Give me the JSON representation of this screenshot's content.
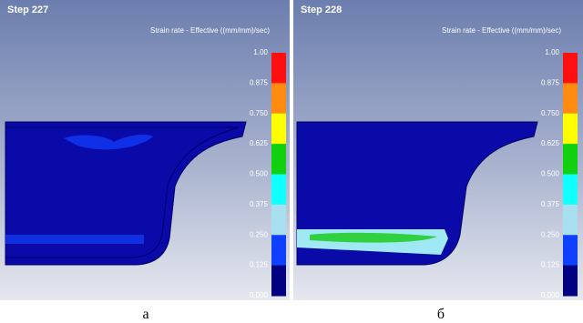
{
  "panels": [
    {
      "step": "Step 227",
      "legend_title": "Strain rate - Effective ((mm/mm)/sec)",
      "caption": "а"
    },
    {
      "step": "Step 228",
      "legend_title": "Strain rate - Effective ((mm/mm)/sec)",
      "caption": "б"
    }
  ],
  "colorbar": {
    "labels": [
      "1.00",
      "0.875",
      "0.750",
      "0.625",
      "0.500",
      "0.375",
      "0.250",
      "0.125",
      "0.000"
    ],
    "colors": [
      "#ff1010",
      "#ff8c10",
      "#ffff00",
      "#10d010",
      "#10ffff",
      "#a8e0f0",
      "#1040ff",
      "#000080"
    ]
  }
}
